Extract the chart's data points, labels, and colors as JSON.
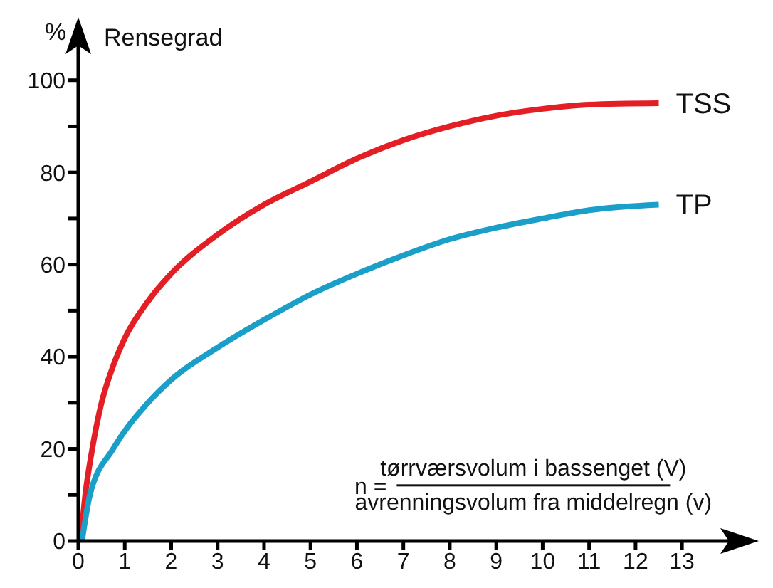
{
  "chart_data": {
    "type": "line",
    "ylabel": "Rensegrad",
    "annotations": [
      "%",
      "n =",
      "tørrværsvolum i bassenget (V)",
      "avrenningsvolum fra middelregn (v)"
    ],
    "xlim": [
      0,
      14.5
    ],
    "ylim": [
      0,
      110
    ],
    "xticks": [
      0,
      1,
      2,
      3,
      4,
      5,
      6,
      7,
      8,
      9,
      10,
      11,
      12,
      13
    ],
    "yticks": [
      0,
      {
        "value": 10,
        "label": null
      },
      20,
      {
        "value": 30,
        "label": null
      },
      40,
      {
        "value": 50,
        "label": null
      },
      60,
      {
        "value": 70,
        "label": null
      },
      80,
      {
        "value": 90,
        "label": null
      },
      100
    ],
    "marker": "none",
    "line_style": "solid",
    "series": [
      {
        "name": "TSS",
        "color": "#e31e24",
        "x": [
          0.05,
          0.15,
          0.3,
          0.5,
          0.75,
          1,
          1.5,
          2,
          3,
          4,
          5,
          6,
          7,
          8,
          9,
          10,
          11,
          12.5
        ],
        "values": [
          0,
          10,
          20,
          30,
          38,
          44,
          52,
          58,
          66.5,
          73,
          78,
          83,
          87,
          90,
          92.3,
          93.8,
          94.7,
          95
        ]
      },
      {
        "name": "TP",
        "color": "#1a9fc9",
        "x": [
          0.08,
          0.25,
          0.75,
          1.5,
          2,
          3,
          4,
          5,
          6,
          7,
          8,
          9,
          10,
          11,
          12.5
        ],
        "values": [
          0,
          10,
          20,
          30,
          35,
          42,
          48,
          53.5,
          58,
          62,
          65.5,
          68,
          70,
          71.8,
          73
        ]
      }
    ]
  }
}
